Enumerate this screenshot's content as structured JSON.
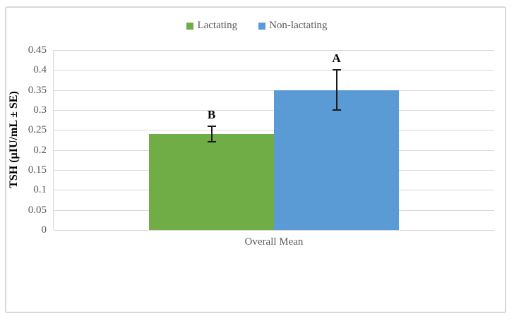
{
  "chart_data": {
    "type": "bar",
    "title": "",
    "categories": [
      "Overall Mean"
    ],
    "series": [
      {
        "name": "Lactating",
        "values": [
          0.24
        ],
        "errors": [
          0.02
        ],
        "point_labels": [
          "B"
        ],
        "color": "#70AD47"
      },
      {
        "name": "Non-lactating",
        "values": [
          0.35
        ],
        "errors": [
          0.05
        ],
        "point_labels": [
          "A"
        ],
        "color": "#5B9BD5"
      }
    ],
    "ylabel": "TSH (µIU/mL ± SE)",
    "xlabel": "",
    "ylim": [
      0,
      0.45
    ],
    "ytick_labels": [
      "0",
      "0.05",
      "0.1",
      "0.15",
      "0.2",
      "0.25",
      "0.3",
      "0.35",
      "0.4",
      "0.45"
    ],
    "grid": true,
    "legend_position": "top",
    "error_bars": true
  },
  "colors": {
    "lactating_green": "#70AD47",
    "non_lactating_blue": "#5B9BD5",
    "gridline": "#D9D9D9",
    "figure_border": "#D9D9D9",
    "tick_text": "#595959",
    "annotation_text": "#000000",
    "error_bar": "#1a1a1a"
  }
}
